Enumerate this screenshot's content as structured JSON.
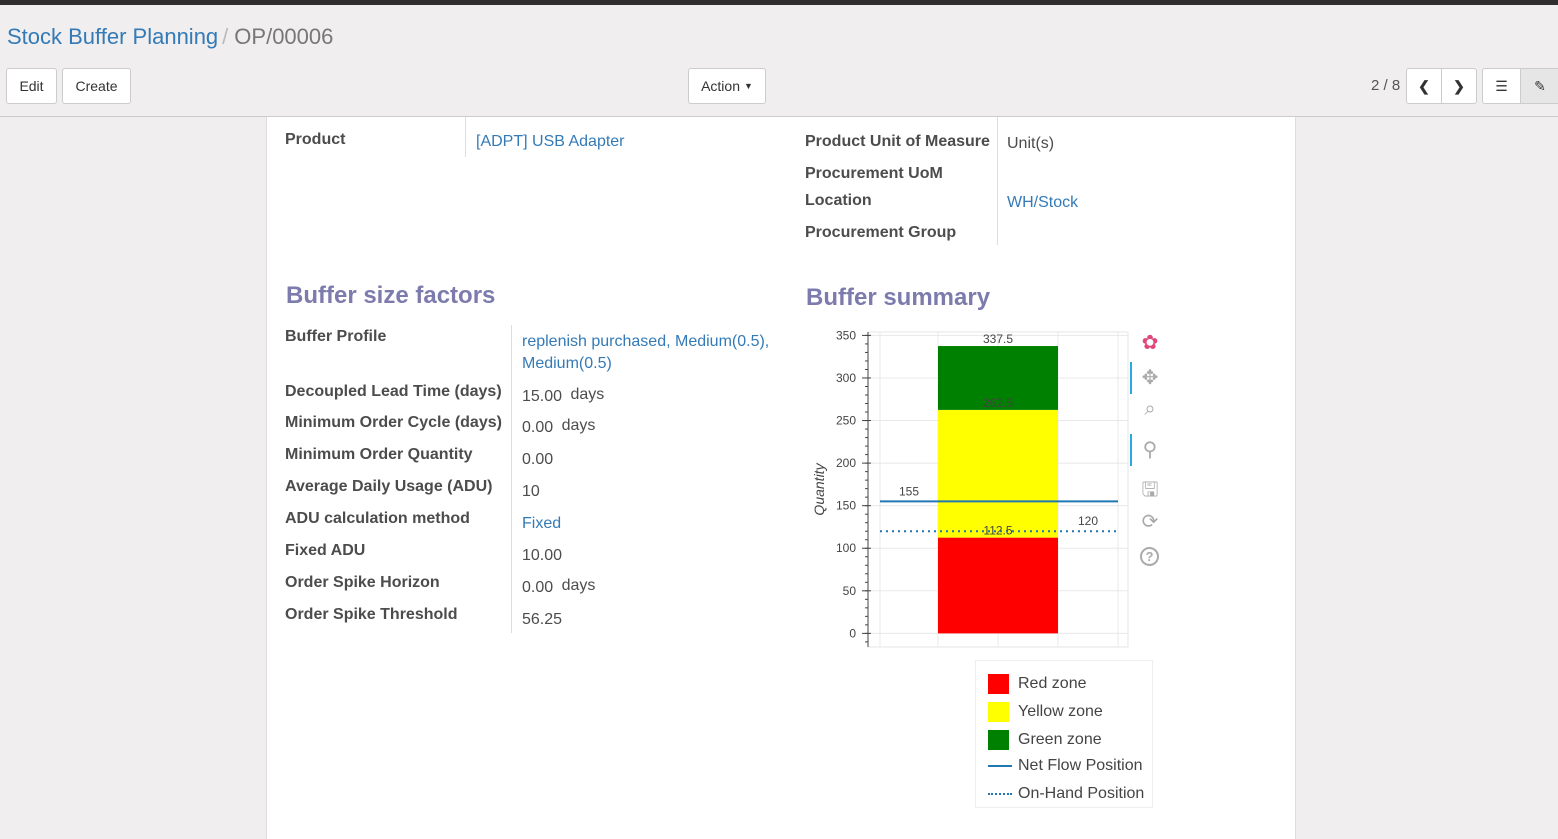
{
  "breadcrumb": {
    "parent": "Stock Buffer Planning",
    "current": "OP/00006"
  },
  "toolbar": {
    "edit": "Edit",
    "create": "Create",
    "action": "Action",
    "pager": "2 / 8"
  },
  "form": {
    "left": [
      {
        "label": "Product",
        "value": "[ADPT] USB Adapter",
        "link": true
      }
    ],
    "right": [
      {
        "label": "Product Unit of Measure",
        "value": "Unit(s)"
      },
      {
        "label": "Procurement UoM",
        "value": ""
      },
      {
        "label": "Location",
        "value": "WH/Stock"
      },
      {
        "label": "Procurement Group",
        "value": ""
      }
    ]
  },
  "buffer_size": {
    "title": "Buffer size factors",
    "rows": [
      {
        "label": "Buffer Profile",
        "value": "replenish purchased, Medium(0.5),",
        "value2": "Medium(0.5)"
      },
      {
        "label": "Decoupled Lead Time (days)",
        "value": "15.00",
        "unit": "days"
      },
      {
        "label": "Minimum Order Cycle (days)",
        "value": "0.00",
        "unit": "days"
      },
      {
        "label": "Minimum Order Quantity",
        "value": "0.00"
      },
      {
        "label": "Average Daily Usage (ADU)",
        "value": "10"
      },
      {
        "label": "ADU calculation method",
        "value": "Fixed"
      },
      {
        "label": "Fixed ADU",
        "value": "10.00"
      },
      {
        "label": "Order Spike Horizon",
        "value": "0.00",
        "unit": "days"
      },
      {
        "label": "Order Spike Threshold",
        "value": "56.25"
      }
    ]
  },
  "buffer_summary": {
    "title": "Buffer summary"
  },
  "chart_data": {
    "type": "bar",
    "stacked": true,
    "ylabel": "Quantity",
    "ylim": [
      -16,
      354
    ],
    "yticks": [
      0,
      50,
      100,
      150,
      200,
      250,
      300,
      350
    ],
    "grid": true,
    "series": [
      {
        "name": "Red zone",
        "bottom": 0,
        "top": 112.5,
        "color": "#ff0000"
      },
      {
        "name": "Yellow zone",
        "bottom": 112.5,
        "top": 262.5,
        "color": "#ffff00"
      },
      {
        "name": "Green zone",
        "bottom": 262.5,
        "top": 337.5,
        "color": "#008000"
      }
    ],
    "bar_labels": [
      "112.5",
      "262.5",
      "337.5"
    ],
    "lines": [
      {
        "name": "Net Flow Position",
        "value": 155,
        "label": "155",
        "style": "solid",
        "color": "#1f77b4"
      },
      {
        "name": "On-Hand Position",
        "value": 120,
        "label": "120",
        "style": "dotted",
        "color": "#1f77b4"
      }
    ],
    "legend_position": "bottom"
  },
  "chart_tools": [
    "bokeh-logo-icon",
    "pan-icon",
    "box-zoom-icon",
    "wheel-zoom-icon",
    "save-icon",
    "reset-icon",
    "help-icon"
  ]
}
